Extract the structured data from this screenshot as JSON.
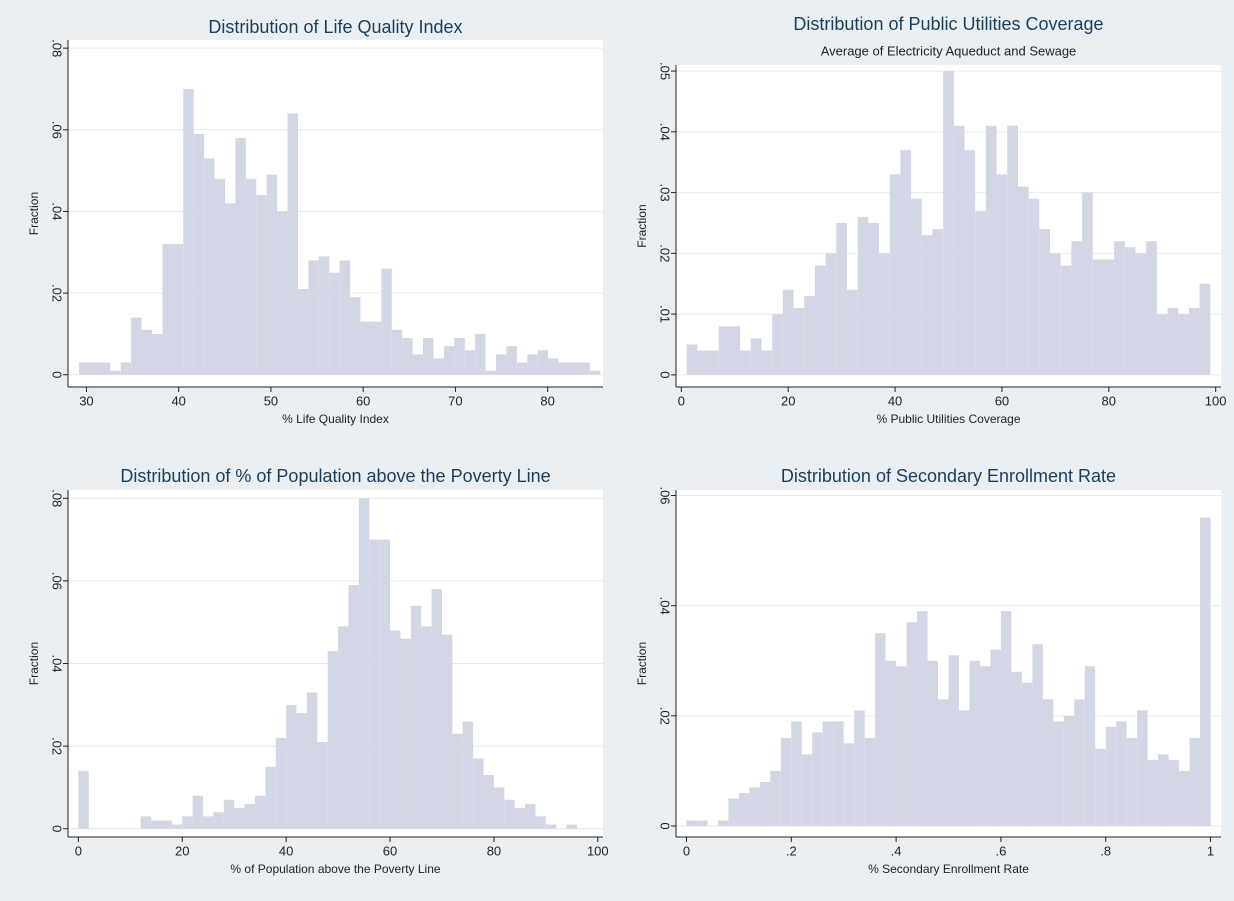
{
  "chart_data": [
    {
      "type": "histogram",
      "title": "Distribution of Life Quality Index",
      "x_label": "% Life Quality Index",
      "y_label": "Fraction",
      "color": "#d3d7e5",
      "grid": true,
      "bins": [
        29.2,
        30.33,
        31.46,
        32.59,
        33.72,
        34.85,
        35.98,
        37.11,
        38.24,
        39.37,
        40.5,
        41.63,
        42.76,
        43.89,
        45.02,
        46.15,
        47.28,
        48.41,
        49.54,
        50.67,
        51.8,
        52.93,
        54.06,
        55.19,
        56.32,
        57.45,
        58.58,
        59.71,
        60.84,
        61.97,
        63.1,
        64.23,
        65.36,
        66.49,
        67.62,
        68.75,
        69.88,
        71.01,
        72.14,
        73.27,
        74.4,
        75.53,
        76.66,
        77.79,
        78.92,
        80.05,
        81.18,
        82.31,
        83.44,
        84.57,
        85.7
      ],
      "values": [
        0.003,
        0.003,
        0.003,
        0.001,
        0.003,
        0.014,
        0.011,
        0.01,
        0.032,
        0.032,
        0.07,
        0.059,
        0.053,
        0.048,
        0.042,
        0.058,
        0.048,
        0.044,
        0.049,
        0.04,
        0.064,
        0.021,
        0.028,
        0.029,
        0.025,
        0.028,
        0.019,
        0.013,
        0.013,
        0.026,
        0.011,
        0.009,
        0.005,
        0.009,
        0.004,
        0.007,
        0.009,
        0.006,
        0.01,
        0.001,
        0.005,
        0.007,
        0.003,
        0.005,
        0.006,
        0.004,
        0.003,
        0.003,
        0.003,
        0.001
      ],
      "xlim": [
        28,
        86
      ],
      "ylim": [
        -0.003,
        0.082
      ],
      "xticks": [
        30,
        40,
        50,
        60,
        70,
        80
      ],
      "yticks": [
        0,
        {
          "value": 0.02,
          "label": ".02"
        },
        {
          "value": 0.04,
          "label": ".04"
        },
        {
          "value": 0.06,
          "label": ".06"
        },
        {
          "value": 0.08,
          "label": ".08"
        }
      ]
    },
    {
      "type": "histogram",
      "title": "Distribution of Public Utilities Coverage",
      "subtitle": "Average of Electricity Aqueduct and Sewage",
      "x_label": "% Public Utilities Coverage",
      "y_label": "Fraction",
      "color": "#d3d7e5",
      "grid": true,
      "bins": [
        1,
        3,
        5,
        7,
        9,
        11,
        13,
        15,
        17,
        19,
        21,
        23,
        25,
        27,
        29,
        31,
        33,
        35,
        37,
        39,
        41,
        43,
        45,
        47,
        49,
        51,
        53,
        55,
        57,
        59,
        61,
        63,
        65,
        67,
        69,
        71,
        73,
        75,
        77,
        79,
        81,
        83,
        85,
        87,
        89,
        91,
        93,
        95,
        97,
        99
      ],
      "values": [
        0.005,
        0.004,
        0.004,
        0.008,
        0.008,
        0.004,
        0.006,
        0.004,
        0.01,
        0.014,
        0.011,
        0.013,
        0.018,
        0.02,
        0.025,
        0.014,
        0.026,
        0.025,
        0.02,
        0.033,
        0.037,
        0.029,
        0.023,
        0.024,
        0.05,
        0.041,
        0.037,
        0.027,
        0.041,
        0.033,
        0.041,
        0.031,
        0.029,
        0.024,
        0.02,
        0.018,
        0.022,
        0.03,
        0.019,
        0.019,
        0.022,
        0.021,
        0.02,
        0.022,
        0.01,
        0.011,
        0.01,
        0.011,
        0.015
      ],
      "xlim": [
        -1,
        101
      ],
      "ylim": [
        -0.002,
        0.051
      ],
      "xticks": [
        0,
        20,
        40,
        60,
        80,
        100
      ],
      "yticks": [
        0,
        {
          "value": 0.01,
          "label": ".01"
        },
        {
          "value": 0.02,
          "label": ".02"
        },
        {
          "value": 0.03,
          "label": ".03"
        },
        {
          "value": 0.04,
          "label": ".04"
        },
        {
          "value": 0.05,
          "label": ".05"
        }
      ]
    },
    {
      "type": "histogram",
      "title": "Distribution of % of Population above the Poverty Line",
      "x_label": "% of Population above the Poverty Line",
      "y_label": "Fraction",
      "color": "#d3d7e5",
      "grid": true,
      "bins": [
        0,
        2,
        4,
        6,
        8,
        10,
        12,
        14,
        16,
        18,
        20,
        22,
        24,
        26,
        28,
        30,
        32,
        34,
        36,
        38,
        40,
        42,
        44,
        46,
        48,
        50,
        52,
        54,
        56,
        58,
        60,
        62,
        64,
        66,
        68,
        70,
        72,
        74,
        76,
        78,
        80,
        82,
        84,
        86,
        88,
        90,
        92,
        94,
        96
      ],
      "values": [
        0.014,
        0,
        0,
        0,
        0,
        0,
        0.003,
        0.002,
        0.002,
        0.001,
        0.003,
        0.008,
        0.003,
        0.004,
        0.007,
        0.005,
        0.006,
        0.008,
        0.015,
        0.022,
        0.03,
        0.028,
        0.033,
        0.021,
        0.043,
        0.049,
        0.059,
        0.08,
        0.07,
        0.07,
        0.048,
        0.046,
        0.054,
        0.049,
        0.058,
        0.047,
        0.023,
        0.026,
        0.017,
        0.013,
        0.01,
        0.007,
        0.005,
        0.006,
        0.003,
        0.001,
        0,
        0.001
      ],
      "xlim": [
        -2,
        101
      ],
      "ylim": [
        -0.002,
        0.082
      ],
      "xticks": [
        0,
        20,
        40,
        60,
        80,
        100
      ],
      "yticks": [
        0,
        {
          "value": 0.02,
          "label": ".02"
        },
        {
          "value": 0.04,
          "label": ".04"
        },
        {
          "value": 0.06,
          "label": ".06"
        },
        {
          "value": 0.08,
          "label": ".08"
        }
      ]
    },
    {
      "type": "histogram",
      "title": "Distribution of Secondary Enrollment Rate",
      "x_label": "% Secondary Enrollment Rate",
      "y_label": "Fraction",
      "color": "#d3d7e5",
      "grid": true,
      "bins": [
        0,
        0.02,
        0.04,
        0.06,
        0.08,
        0.1,
        0.12,
        0.14,
        0.16,
        0.18,
        0.2,
        0.22,
        0.24,
        0.26,
        0.28,
        0.3,
        0.32,
        0.34,
        0.36,
        0.38,
        0.4,
        0.42,
        0.44,
        0.46,
        0.48,
        0.5,
        0.52,
        0.54,
        0.56,
        0.58,
        0.6,
        0.62,
        0.64,
        0.66,
        0.68,
        0.7,
        0.72,
        0.74,
        0.76,
        0.78,
        0.8,
        0.82,
        0.84,
        0.86,
        0.88,
        0.9,
        0.92,
        0.94,
        0.96,
        0.98,
        1
      ],
      "values": [
        0.001,
        0.001,
        0,
        0.001,
        0.005,
        0.006,
        0.007,
        0.008,
        0.01,
        0.016,
        0.019,
        0.013,
        0.017,
        0.019,
        0.019,
        0.015,
        0.021,
        0.016,
        0.035,
        0.03,
        0.029,
        0.037,
        0.039,
        0.03,
        0.023,
        0.031,
        0.021,
        0.03,
        0.029,
        0.032,
        0.039,
        0.028,
        0.026,
        0.033,
        0.023,
        0.019,
        0.02,
        0.023,
        0.029,
        0.014,
        0.018,
        0.019,
        0.016,
        0.021,
        0.012,
        0.013,
        0.012,
        0.01,
        0.016,
        0.056
      ],
      "xlim": [
        -0.02,
        1.02
      ],
      "ylim": [
        -0.002,
        0.061
      ],
      "xticks": [
        0,
        {
          "value": 0.2,
          "label": ".2"
        },
        {
          "value": 0.4,
          "label": ".4"
        },
        {
          "value": 0.6,
          "label": ".6"
        },
        {
          "value": 0.8,
          "label": ".8"
        },
        1
      ],
      "yticks": [
        0,
        {
          "value": 0.02,
          "label": ".02"
        },
        {
          "value": 0.04,
          "label": ".04"
        },
        {
          "value": 0.06,
          "label": ".06"
        }
      ]
    }
  ]
}
